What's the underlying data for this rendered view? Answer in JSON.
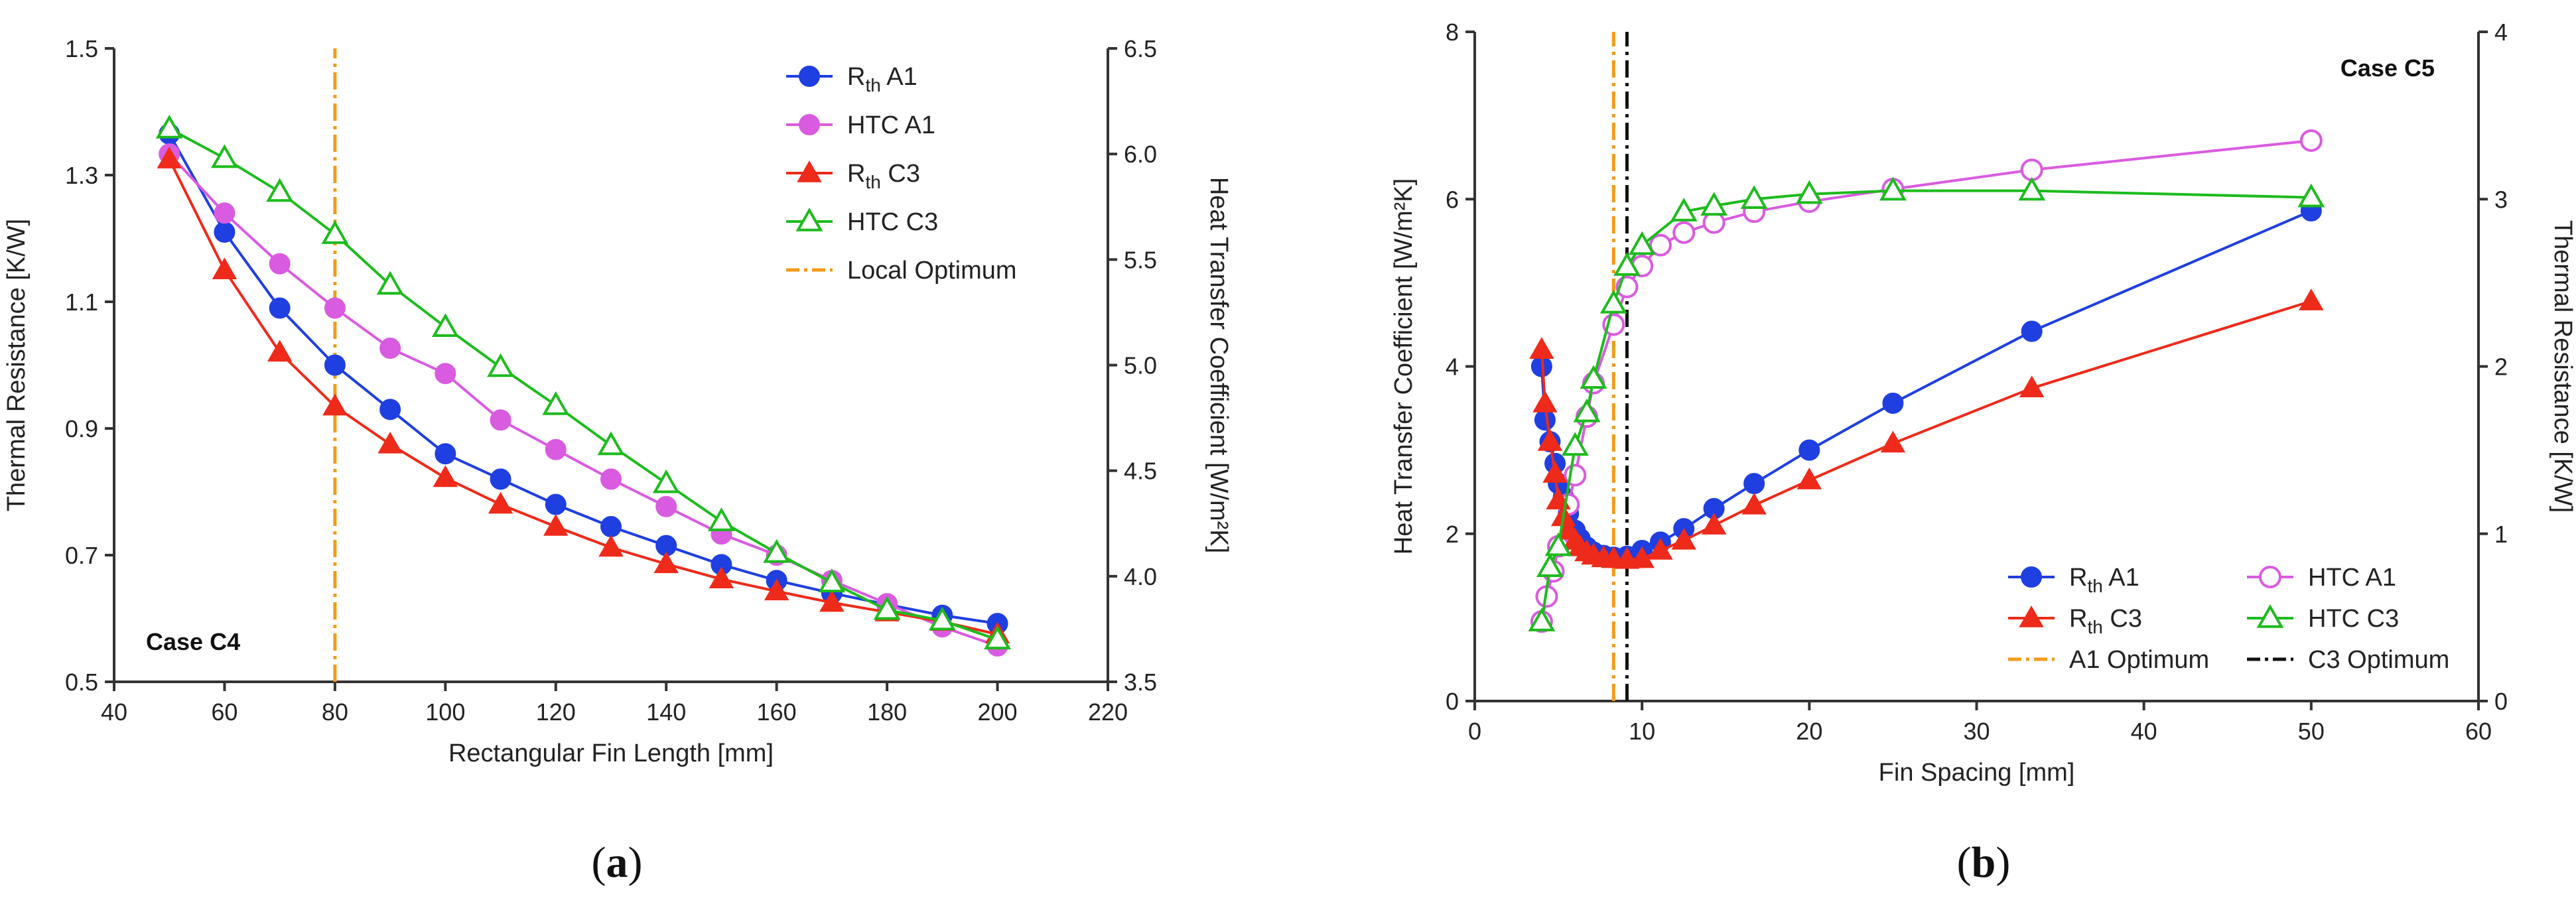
{
  "chart_data": [
    {
      "type": "line",
      "panel": "a",
      "case_label": "Case C4",
      "xlabel": "Rectangular Fin Length [mm]",
      "ylabel_left": "Thermal Resistance [K/W]",
      "ylabel_right": "Heat Transfer Coefficient [W/m²K]",
      "xlim": [
        40,
        220
      ],
      "ylim_left": [
        0.5,
        1.5
      ],
      "ylim_right": [
        3.5,
        6.5
      ],
      "xticks": [
        40,
        60,
        80,
        100,
        120,
        140,
        160,
        180,
        200,
        220
      ],
      "xtick_labels": [
        "40",
        "60",
        "80",
        "100",
        "120",
        "140",
        "160",
        "180",
        "200",
        "220"
      ],
      "yticks_left": [
        0.5,
        0.7,
        0.9,
        1.1,
        1.3,
        1.5
      ],
      "ytick_labels_left": [
        "0.5",
        "0.7",
        "0.9",
        "1.1",
        "1.3",
        "1.5"
      ],
      "yticks_right": [
        3.5,
        4.0,
        4.5,
        5.0,
        5.5,
        6.0,
        6.5
      ],
      "ytick_labels_right": [
        "3.5",
        "4.0",
        "4.5",
        "5.0",
        "5.5",
        "6.0",
        "6.5"
      ],
      "x": [
        50,
        60,
        70,
        80,
        90,
        100,
        110,
        120,
        130,
        140,
        150,
        160,
        170,
        180,
        190,
        200
      ],
      "legend_position": "top-right",
      "series": [
        {
          "name": "Rth A1",
          "label_main": "R",
          "label_sub": "th",
          "label_rest": " A1",
          "axis": "left",
          "color": "#1f3fe0",
          "marker": "circle",
          "filled": true,
          "values": [
            1.365,
            1.21,
            1.09,
            1.0,
            0.93,
            0.86,
            0.82,
            0.78,
            0.745,
            0.715,
            0.685,
            0.66,
            0.64,
            0.622,
            0.605,
            0.592
          ]
        },
        {
          "name": "HTC A1",
          "label_main": "HTC A1",
          "label_sub": "",
          "label_rest": "",
          "axis": "right",
          "color": "#d95be0",
          "marker": "circle",
          "filled": true,
          "values": [
            6.0,
            5.72,
            5.48,
            5.27,
            5.08,
            4.96,
            4.74,
            4.6,
            4.46,
            4.33,
            4.2,
            4.1,
            3.98,
            3.87,
            3.76,
            3.67
          ]
        },
        {
          "name": "Rth C3",
          "label_main": "R",
          "label_sub": "th",
          "label_rest": " C3",
          "axis": "left",
          "color": "#ee2a1a",
          "marker": "triangle",
          "filled": true,
          "values": [
            1.325,
            1.15,
            1.02,
            0.935,
            0.875,
            0.822,
            0.78,
            0.745,
            0.712,
            0.686,
            0.662,
            0.643,
            0.625,
            0.61,
            0.595,
            0.575
          ]
        },
        {
          "name": "HTC C3",
          "label_main": "HTC C3",
          "label_sub": "",
          "label_rest": "",
          "axis": "right",
          "color": "#1dbb1d",
          "marker": "triangle",
          "filled": false,
          "values": [
            6.12,
            5.98,
            5.82,
            5.62,
            5.38,
            5.18,
            4.99,
            4.81,
            4.62,
            4.44,
            4.26,
            4.11,
            3.97,
            3.84,
            3.79,
            3.7
          ]
        }
      ],
      "vlines": [
        {
          "name": "Local Optimum",
          "x": 80,
          "color": "#f29b1a",
          "style": "dash-dot"
        }
      ]
    },
    {
      "type": "line",
      "panel": "b",
      "case_label": "Case C5",
      "xlabel": "Fin Spacing [mm]",
      "ylabel_left": "Heat Transfer Coefficient [W/m²K]",
      "ylabel_right": "Thermal Resistance [K/W]",
      "xlim": [
        0,
        60
      ],
      "ylim_left": [
        0,
        8
      ],
      "ylim_right": [
        0,
        4
      ],
      "xticks": [
        0,
        10,
        20,
        30,
        40,
        50,
        60
      ],
      "xtick_labels": [
        "0",
        "10",
        "20",
        "30",
        "40",
        "50",
        "60"
      ],
      "yticks_left": [
        0,
        2,
        4,
        6,
        8
      ],
      "ytick_labels_left": [
        "0",
        "2",
        "4",
        "6",
        "8"
      ],
      "yticks_right": [
        0,
        1,
        2,
        3,
        4
      ],
      "ytick_labels_right": [
        "0",
        "1",
        "2",
        "3",
        "4"
      ],
      "legend_position": "bottom-right",
      "series": [
        {
          "name": "Rth A1",
          "label_main": "R",
          "label_sub": "th",
          "label_rest": " A1",
          "axis": "right",
          "color": "#1f3fe0",
          "marker": "circle",
          "filled": true,
          "x": [
            4.0,
            4.2,
            4.5,
            4.8,
            5.0,
            5.3,
            5.6,
            6.0,
            6.3,
            6.7,
            7.1,
            7.7,
            8.3,
            9.1,
            10.0,
            11.1,
            12.5,
            14.3,
            16.7,
            20.0,
            25.0,
            33.3,
            50.0
          ],
          "values": [
            2.0,
            1.68,
            1.55,
            1.42,
            1.3,
            1.22,
            1.12,
            1.02,
            0.97,
            0.92,
            0.89,
            0.87,
            0.86,
            0.865,
            0.9,
            0.95,
            1.03,
            1.15,
            1.3,
            1.5,
            1.78,
            2.21,
            2.93
          ]
        },
        {
          "name": "HTC A1",
          "label_main": "HTC A1",
          "label_sub": "",
          "label_rest": "",
          "axis": "left",
          "color": "#d95be0",
          "marker": "circle",
          "filled": false,
          "x": [
            4.0,
            4.3,
            4.7,
            5.0,
            5.6,
            6.0,
            6.7,
            7.1,
            8.3,
            9.1,
            10.0,
            11.1,
            12.5,
            14.3,
            16.7,
            20.0,
            25.0,
            33.3,
            50.0
          ],
          "values": [
            0.95,
            1.25,
            1.55,
            1.85,
            2.35,
            2.7,
            3.4,
            3.8,
            4.5,
            4.95,
            5.2,
            5.45,
            5.6,
            5.72,
            5.85,
            5.97,
            6.12,
            6.35,
            6.7
          ]
        },
        {
          "name": "Rth C3",
          "label_main": "R",
          "label_sub": "th",
          "label_rest": " C3",
          "axis": "right",
          "color": "#ee2a1a",
          "marker": "triangle",
          "filled": true,
          "x": [
            4.0,
            4.2,
            4.5,
            4.8,
            5.0,
            5.3,
            5.6,
            6.0,
            6.3,
            6.7,
            7.1,
            7.7,
            8.3,
            9.1,
            10.0,
            11.1,
            12.5,
            14.3,
            16.7,
            20.0,
            25.0,
            33.3,
            50.0
          ],
          "values": [
            2.1,
            1.78,
            1.55,
            1.36,
            1.2,
            1.1,
            1.02,
            0.96,
            0.92,
            0.89,
            0.87,
            0.855,
            0.85,
            0.845,
            0.85,
            0.9,
            0.96,
            1.05,
            1.17,
            1.32,
            1.54,
            1.87,
            2.39
          ]
        },
        {
          "name": "HTC C3",
          "label_main": "HTC C3",
          "label_sub": "",
          "label_rest": "",
          "axis": "left",
          "color": "#1dbb1d",
          "marker": "triangle",
          "filled": false,
          "x": [
            4.0,
            4.5,
            5.0,
            6.0,
            6.7,
            7.1,
            8.3,
            9.1,
            10.0,
            12.5,
            14.3,
            16.7,
            20.0,
            25.0,
            33.3,
            50.0
          ],
          "values": [
            0.95,
            1.6,
            1.85,
            3.05,
            3.45,
            3.85,
            4.75,
            5.2,
            5.45,
            5.85,
            5.92,
            6.0,
            6.06,
            6.1,
            6.1,
            6.02
          ]
        }
      ],
      "vlines": [
        {
          "name": "A1 Optimum",
          "x": 8.3,
          "color": "#f29b1a",
          "style": "dash-dot"
        },
        {
          "name": "C3 Optimum",
          "x": 9.1,
          "color": "#111111",
          "style": "dash-dot"
        }
      ]
    }
  ],
  "panel_labels": [
    "(a)",
    "(b)"
  ]
}
